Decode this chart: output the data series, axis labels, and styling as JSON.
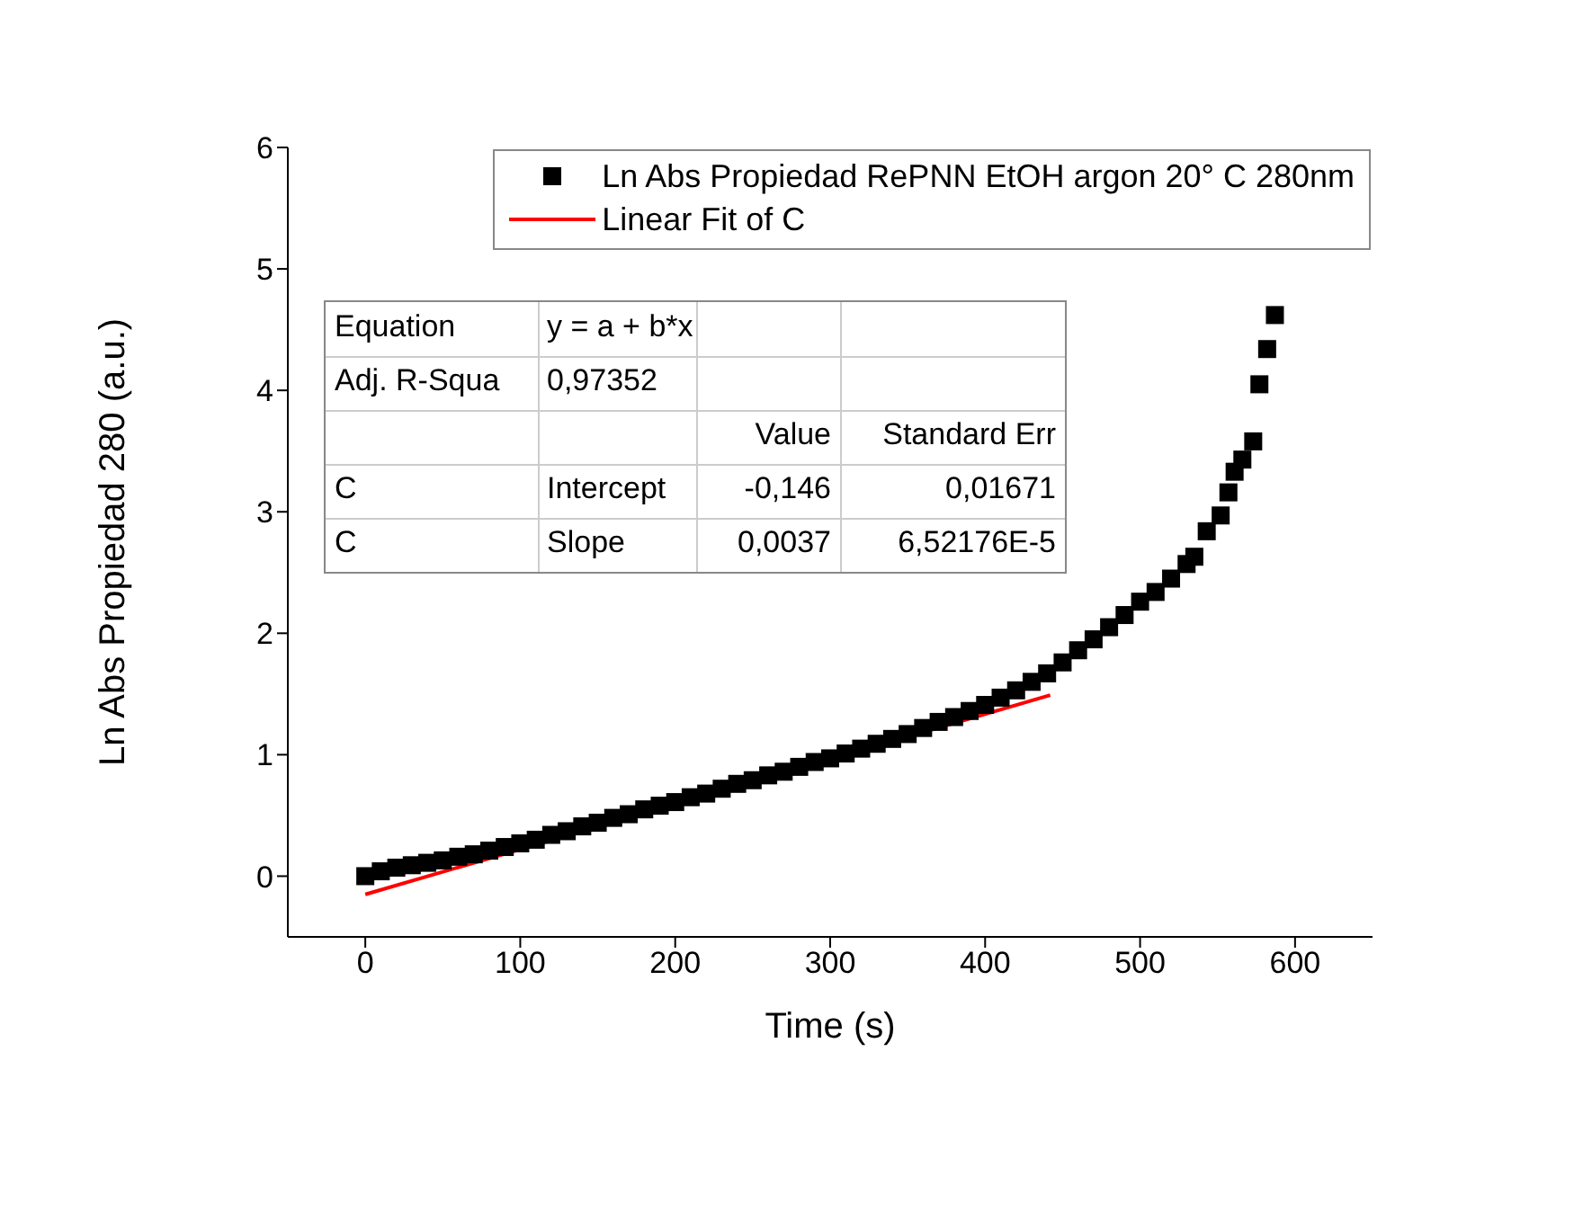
{
  "chart_data": {
    "type": "scatter",
    "xlabel": "Time (s)",
    "ylabel": "Ln Abs Propiedad 280 (a.u.)",
    "xlim": [
      -50,
      650
    ],
    "ylim": [
      -0.5,
      6
    ],
    "xticks": [
      0,
      100,
      200,
      300,
      400,
      500,
      600
    ],
    "yticks": [
      0,
      1,
      2,
      3,
      4,
      5,
      6
    ],
    "legend": "top right",
    "series": [
      {
        "name": "Ln Abs Propiedad RePNN EtOH argon 20° C 280nm",
        "marker": "square",
        "color": "#000000",
        "x": [
          0,
          10,
          20,
          30,
          40,
          50,
          60,
          70,
          80,
          90,
          100,
          110,
          120,
          130,
          140,
          150,
          160,
          170,
          180,
          190,
          200,
          210,
          220,
          230,
          240,
          250,
          260,
          270,
          280,
          290,
          300,
          310,
          320,
          330,
          340,
          350,
          360,
          370,
          380,
          390,
          400,
          410,
          420,
          430,
          440,
          450,
          460,
          470,
          480,
          490,
          500,
          510,
          520,
          530,
          535,
          543,
          552,
          557,
          561,
          566,
          573,
          577,
          582,
          587
        ],
        "values": [
          0.0,
          0.04,
          0.07,
          0.09,
          0.11,
          0.13,
          0.16,
          0.18,
          0.21,
          0.24,
          0.27,
          0.3,
          0.34,
          0.37,
          0.41,
          0.44,
          0.48,
          0.51,
          0.55,
          0.58,
          0.61,
          0.65,
          0.68,
          0.72,
          0.76,
          0.79,
          0.83,
          0.86,
          0.9,
          0.94,
          0.97,
          1.01,
          1.05,
          1.09,
          1.13,
          1.17,
          1.22,
          1.27,
          1.31,
          1.36,
          1.41,
          1.47,
          1.53,
          1.6,
          1.67,
          1.76,
          1.86,
          1.95,
          2.05,
          2.15,
          2.26,
          2.34,
          2.45,
          2.57,
          2.63,
          2.84,
          2.97,
          3.16,
          3.33,
          3.43,
          3.58,
          4.05,
          4.34,
          4.62
        ]
      },
      {
        "name": "Linear Fit of C",
        "type": "line",
        "color": "#ff0000",
        "x": [
          0,
          442
        ],
        "values": [
          -0.15,
          1.49
        ]
      }
    ],
    "annotations": [
      "Equation",
      "y = a + b*x",
      "Adj. R-Squa",
      "0,97352",
      "Value",
      "Standard Err",
      "C",
      "Intercept",
      "-0,146",
      "0,01671",
      "C",
      "Slope",
      "0,0037",
      "6,52176E-5"
    ]
  }
}
